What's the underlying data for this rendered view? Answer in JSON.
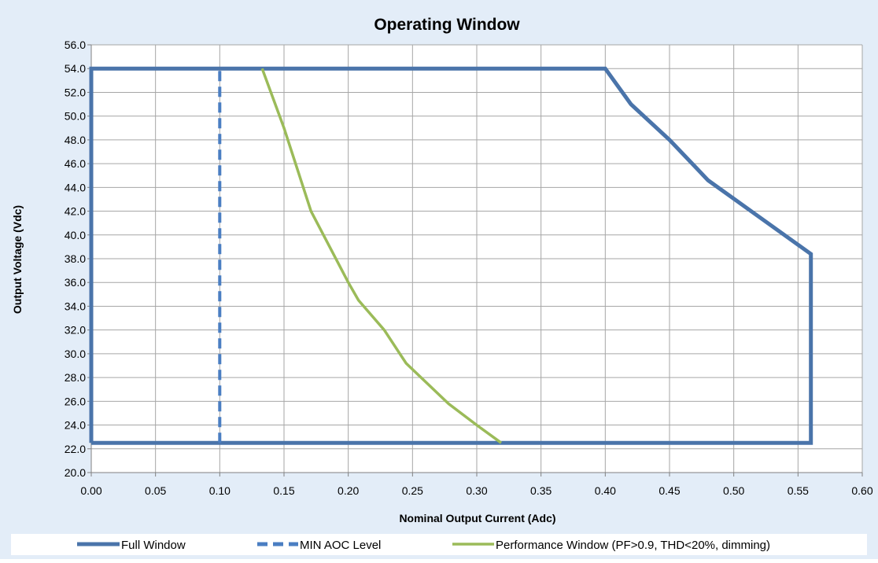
{
  "chart_data": {
    "type": "line",
    "title": "Operating Window",
    "xlabel": "Nominal Output Current (Adc)",
    "ylabel": "Output Voltage (Vdc)",
    "xlim": [
      0,
      0.6
    ],
    "ylim": [
      20,
      56
    ],
    "x_ticks": [
      "0.00",
      "0.05",
      "0.10",
      "0.15",
      "0.20",
      "0.25",
      "0.30",
      "0.35",
      "0.40",
      "0.45",
      "0.50",
      "0.55",
      "0.60"
    ],
    "y_ticks": [
      "20.0",
      "22.0",
      "24.0",
      "26.0",
      "28.0",
      "30.0",
      "32.0",
      "34.0",
      "36.0",
      "38.0",
      "40.0",
      "42.0",
      "44.0",
      "46.0",
      "48.0",
      "50.0",
      "52.0",
      "54.0",
      "56.0"
    ],
    "grid": true,
    "legend_position": "bottom",
    "series": [
      {
        "name": "Full Window",
        "color": "#4a74aa",
        "style": "solid",
        "x": [
          0.0,
          0.0,
          0.4,
          0.42,
          0.45,
          0.48,
          0.52,
          0.56,
          0.56,
          0.0
        ],
        "y": [
          22.5,
          54.0,
          54.0,
          51.0,
          48.0,
          44.6,
          41.5,
          38.4,
          22.5,
          22.5
        ]
      },
      {
        "name": "MIN AOC Level",
        "color": "#4a7ec2",
        "style": "dashed",
        "x": [
          0.1,
          0.1
        ],
        "y": [
          22.5,
          54.0
        ]
      },
      {
        "name": "Performance Window (PF>0.9, THD<20%, dimming)",
        "color": "#9bbb59",
        "style": "solid",
        "x": [
          0.133,
          0.15,
          0.171,
          0.2,
          0.208,
          0.228,
          0.245,
          0.278,
          0.3,
          0.319
        ],
        "y": [
          54.0,
          49.0,
          42.0,
          36.0,
          34.5,
          32.0,
          29.2,
          25.8,
          24.0,
          22.5
        ]
      }
    ]
  }
}
